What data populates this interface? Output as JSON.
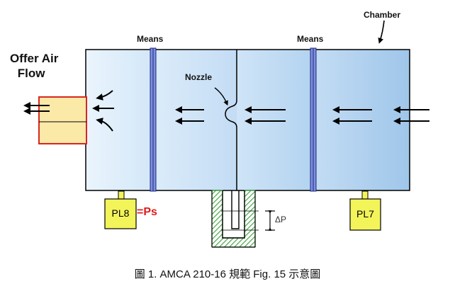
{
  "labels": {
    "offer_air_flow_line1": "Offer Air",
    "offer_air_flow_line2": "Flow",
    "means_left": "Means",
    "means_right": "Means",
    "chamber": "Chamber",
    "nozzle": "Nozzle",
    "pl8": "PL8",
    "ps": "=Ps",
    "pl7": "PL7",
    "delta_p": "ΔP"
  },
  "caption": "圖 1. AMCA 210-16 規範  Fig. 15 示意圖",
  "colors": {
    "chamber_light": "#e4f1fb",
    "chamber_dark": "#a9cdee",
    "offer_fill": "#fbe9a8",
    "offer_border": "#d8261f",
    "gauge_fill": "#f3f45a",
    "manometer_hatch": "#3aa03a",
    "ps_text": "#e21b1b"
  }
}
